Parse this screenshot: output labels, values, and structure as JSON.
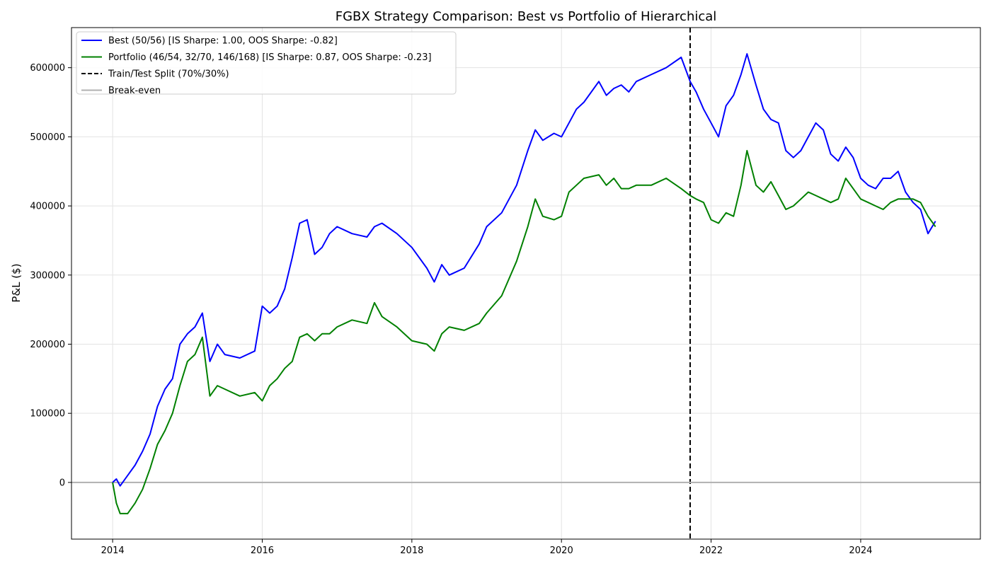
{
  "chart_data": {
    "type": "line",
    "title": "FGBX Strategy Comparison: Best vs Portfolio of Hierarchical",
    "xlabel": "",
    "ylabel": "P&L ($)",
    "xlim": [
      2013.45,
      2025.6
    ],
    "ylim": [
      -82000,
      658000
    ],
    "x_ticks": [
      2014,
      2016,
      2018,
      2020,
      2022,
      2024
    ],
    "y_ticks": [
      0,
      100000,
      200000,
      300000,
      400000,
      500000,
      600000
    ],
    "x_tick_labels": [
      "2014",
      "2016",
      "2018",
      "2020",
      "2022",
      "2024"
    ],
    "y_tick_labels": [
      "0",
      "100000",
      "200000",
      "300000",
      "400000",
      "500000",
      "600000"
    ],
    "grid": true,
    "legend_position": "top-left",
    "series": [
      {
        "name": "Best (50/56) [IS Sharpe: 1.00, OOS Sharpe: -0.82]",
        "color": "#0000ff",
        "x": [
          2014.0,
          2014.05,
          2014.1,
          2014.2,
          2014.3,
          2014.4,
          2014.5,
          2014.6,
          2014.7,
          2014.8,
          2014.9,
          2015.0,
          2015.1,
          2015.2,
          2015.3,
          2015.4,
          2015.5,
          2015.7,
          2015.9,
          2016.0,
          2016.1,
          2016.2,
          2016.3,
          2016.4,
          2016.5,
          2016.6,
          2016.7,
          2016.8,
          2016.9,
          2017.0,
          2017.2,
          2017.4,
          2017.5,
          2017.6,
          2017.8,
          2018.0,
          2018.2,
          2018.3,
          2018.4,
          2018.5,
          2018.7,
          2018.9,
          2019.0,
          2019.2,
          2019.4,
          2019.55,
          2019.65,
          2019.75,
          2019.9,
          2020.0,
          2020.1,
          2020.2,
          2020.3,
          2020.5,
          2020.6,
          2020.7,
          2020.8,
          2020.9,
          2021.0,
          2021.2,
          2021.4,
          2021.6,
          2021.72,
          2021.8,
          2021.9,
          2022.0,
          2022.1,
          2022.2,
          2022.3,
          2022.4,
          2022.48,
          2022.6,
          2022.7,
          2022.8,
          2022.9,
          2023.0,
          2023.1,
          2023.2,
          2023.3,
          2023.4,
          2023.5,
          2023.6,
          2023.7,
          2023.8,
          2023.9,
          2024.0,
          2024.1,
          2024.2,
          2024.3,
          2024.4,
          2024.5,
          2024.6,
          2024.7,
          2024.8,
          2024.9,
          2025.0
        ],
        "values": [
          0,
          5000,
          -5000,
          10000,
          25000,
          45000,
          70000,
          110000,
          135000,
          150000,
          200000,
          215000,
          225000,
          245000,
          175000,
          200000,
          185000,
          180000,
          190000,
          255000,
          245000,
          255000,
          280000,
          325000,
          375000,
          380000,
          330000,
          340000,
          360000,
          370000,
          360000,
          355000,
          370000,
          375000,
          360000,
          340000,
          310000,
          290000,
          315000,
          300000,
          310000,
          345000,
          370000,
          390000,
          430000,
          480000,
          510000,
          495000,
          505000,
          500000,
          520000,
          540000,
          550000,
          580000,
          560000,
          570000,
          575000,
          565000,
          580000,
          590000,
          600000,
          615000,
          580000,
          565000,
          540000,
          520000,
          500000,
          545000,
          560000,
          590000,
          620000,
          575000,
          540000,
          525000,
          520000,
          480000,
          470000,
          480000,
          500000,
          520000,
          510000,
          475000,
          465000,
          485000,
          470000,
          440000,
          430000,
          425000,
          440000,
          440000,
          450000,
          420000,
          405000,
          395000,
          360000,
          378000
        ]
      },
      {
        "name": "Portfolio (46/54, 32/70, 146/168) [IS Sharpe: 0.87, OOS Sharpe: -0.23]",
        "color": "#008000",
        "x": [
          2014.0,
          2014.05,
          2014.1,
          2014.2,
          2014.3,
          2014.4,
          2014.5,
          2014.6,
          2014.7,
          2014.8,
          2014.9,
          2015.0,
          2015.1,
          2015.2,
          2015.3,
          2015.4,
          2015.5,
          2015.7,
          2015.9,
          2016.0,
          2016.1,
          2016.2,
          2016.3,
          2016.4,
          2016.5,
          2016.6,
          2016.7,
          2016.8,
          2016.9,
          2017.0,
          2017.2,
          2017.4,
          2017.5,
          2017.6,
          2017.8,
          2018.0,
          2018.2,
          2018.3,
          2018.4,
          2018.5,
          2018.7,
          2018.9,
          2019.0,
          2019.2,
          2019.4,
          2019.55,
          2019.65,
          2019.75,
          2019.9,
          2020.0,
          2020.1,
          2020.2,
          2020.3,
          2020.5,
          2020.6,
          2020.7,
          2020.8,
          2020.9,
          2021.0,
          2021.2,
          2021.4,
          2021.6,
          2021.72,
          2021.8,
          2021.9,
          2022.0,
          2022.1,
          2022.2,
          2022.3,
          2022.4,
          2022.48,
          2022.6,
          2022.7,
          2022.8,
          2022.9,
          2023.0,
          2023.1,
          2023.2,
          2023.3,
          2023.4,
          2023.5,
          2023.6,
          2023.7,
          2023.8,
          2023.9,
          2024.0,
          2024.1,
          2024.2,
          2024.3,
          2024.4,
          2024.5,
          2024.6,
          2024.7,
          2024.8,
          2024.9,
          2025.0
        ],
        "values": [
          0,
          -30000,
          -45000,
          -45000,
          -30000,
          -10000,
          20000,
          55000,
          75000,
          100000,
          140000,
          175000,
          185000,
          210000,
          125000,
          140000,
          135000,
          125000,
          130000,
          118000,
          140000,
          150000,
          165000,
          175000,
          210000,
          215000,
          205000,
          215000,
          215000,
          225000,
          235000,
          230000,
          260000,
          240000,
          225000,
          205000,
          200000,
          190000,
          215000,
          225000,
          220000,
          230000,
          245000,
          270000,
          320000,
          370000,
          410000,
          385000,
          380000,
          385000,
          420000,
          430000,
          440000,
          445000,
          430000,
          440000,
          425000,
          425000,
          430000,
          430000,
          440000,
          425000,
          415000,
          410000,
          405000,
          380000,
          375000,
          390000,
          385000,
          430000,
          480000,
          430000,
          420000,
          435000,
          415000,
          395000,
          400000,
          410000,
          420000,
          415000,
          410000,
          405000,
          410000,
          440000,
          425000,
          410000,
          405000,
          400000,
          395000,
          405000,
          410000,
          410000,
          410000,
          405000,
          385000,
          370000
        ]
      }
    ],
    "reference_lines": [
      {
        "kind": "vertical",
        "x": 2021.72,
        "label": "Train/Test Split (70%/30%)",
        "color": "#000000",
        "style": "dashed"
      },
      {
        "kind": "horizontal",
        "y": 0,
        "label": "Break-even",
        "color": "#b0b0b0",
        "style": "solid"
      }
    ]
  }
}
